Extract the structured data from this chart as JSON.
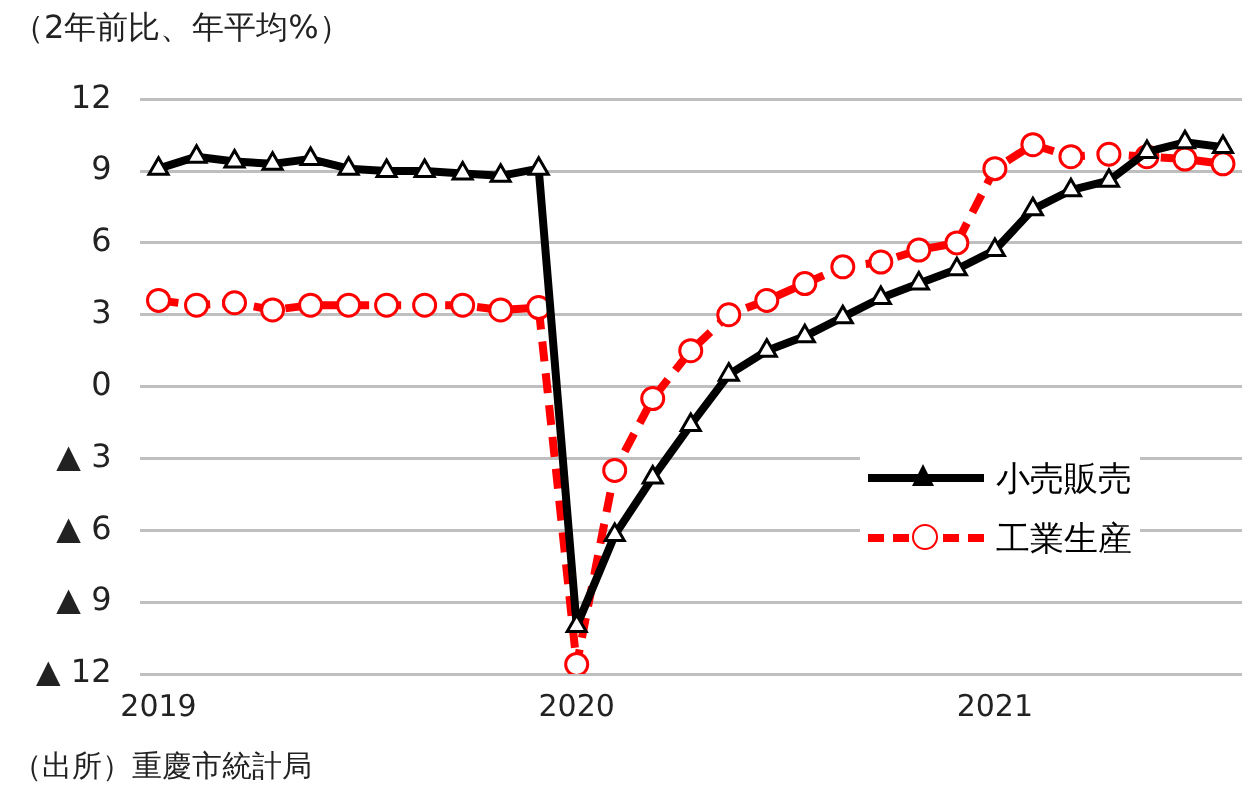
{
  "chart_data": {
    "type": "line",
    "title": "（2年前比、年平均%）",
    "categories": [
      "2019",
      null,
      null,
      null,
      null,
      null,
      null,
      null,
      null,
      null,
      null,
      "2020",
      null,
      null,
      null,
      null,
      null,
      null,
      null,
      null,
      null,
      null,
      "2021",
      null,
      null,
      null,
      null,
      null,
      null
    ],
    "series": [
      {
        "name": "小売販売",
        "color": "#000000",
        "marker": "triangle",
        "line_style": "solid",
        "values": [
          9.1,
          9.6,
          9.4,
          9.3,
          9.5,
          9.1,
          9.0,
          9.0,
          8.9,
          8.8,
          9.1,
          -10.0,
          -6.2,
          -3.8,
          -1.6,
          0.5,
          1.5,
          2.1,
          2.9,
          3.7,
          4.3,
          4.9,
          5.7,
          7.4,
          8.2,
          8.6,
          9.8,
          10.2,
          10.0
        ]
      },
      {
        "name": "工業生産",
        "color": "#ff0000",
        "marker": "circle",
        "line_style": "dashed",
        "values": [
          3.6,
          3.4,
          3.5,
          3.2,
          3.4,
          3.4,
          3.4,
          3.4,
          3.4,
          3.2,
          3.3,
          -11.6,
          -3.5,
          -0.5,
          1.5,
          3.0,
          3.6,
          4.3,
          5.0,
          5.2,
          5.7,
          6.0,
          9.1,
          10.1,
          9.6,
          9.7,
          9.6,
          9.5,
          9.3
        ]
      }
    ],
    "ylim": [
      -12,
      12
    ],
    "yticks": [
      {
        "value": -12,
        "label": "▲ 12"
      },
      {
        "value": -9,
        "label": "▲ 9"
      },
      {
        "value": -6,
        "label": "▲ 6"
      },
      {
        "value": -3,
        "label": "▲ 3"
      },
      0,
      3,
      6,
      9,
      12
    ],
    "grid": "y",
    "legend": "right",
    "annotations": [
      "（出所）重慶市統計局"
    ]
  }
}
